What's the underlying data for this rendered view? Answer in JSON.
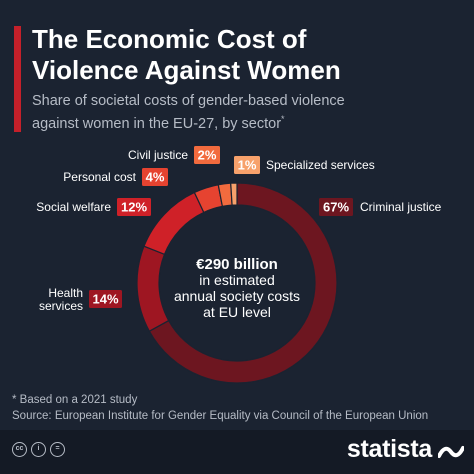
{
  "header": {
    "title_line1": "The Economic Cost of",
    "title_line2": "Violence Against Women",
    "subtitle_line1": "Share of societal costs of gender-based violence",
    "subtitle_line2": "against women in the EU-27, by sector",
    "subtitle_marker": "*"
  },
  "chart_data": {
    "type": "pie",
    "variant": "donut",
    "slices": [
      {
        "label": "Criminal justice",
        "value": 67,
        "value_label": "67%",
        "color": "#6d1620"
      },
      {
        "label": "Health services",
        "value": 14,
        "value_label": "14%",
        "color": "#9e1622"
      },
      {
        "label": "Social welfare",
        "value": 12,
        "value_label": "12%",
        "color": "#cf2128"
      },
      {
        "label": "Personal cost",
        "value": 4,
        "value_label": "4%",
        "color": "#e64330"
      },
      {
        "label": "Civil justice",
        "value": 2,
        "value_label": "2%",
        "color": "#f26b3e"
      },
      {
        "label": "Specialized services",
        "value": 1,
        "value_label": "1%",
        "color": "#f7a16b"
      }
    ],
    "center_text": [
      "€290 billion",
      "in estimated",
      "annual society costs",
      "at EU level"
    ]
  },
  "footer": {
    "note": "* Based on a 2021 study",
    "source": "Source: European Institute for Gender Equality via Council of the European Union",
    "brand": "statista",
    "license_icons": [
      "cc",
      "i",
      "="
    ]
  }
}
